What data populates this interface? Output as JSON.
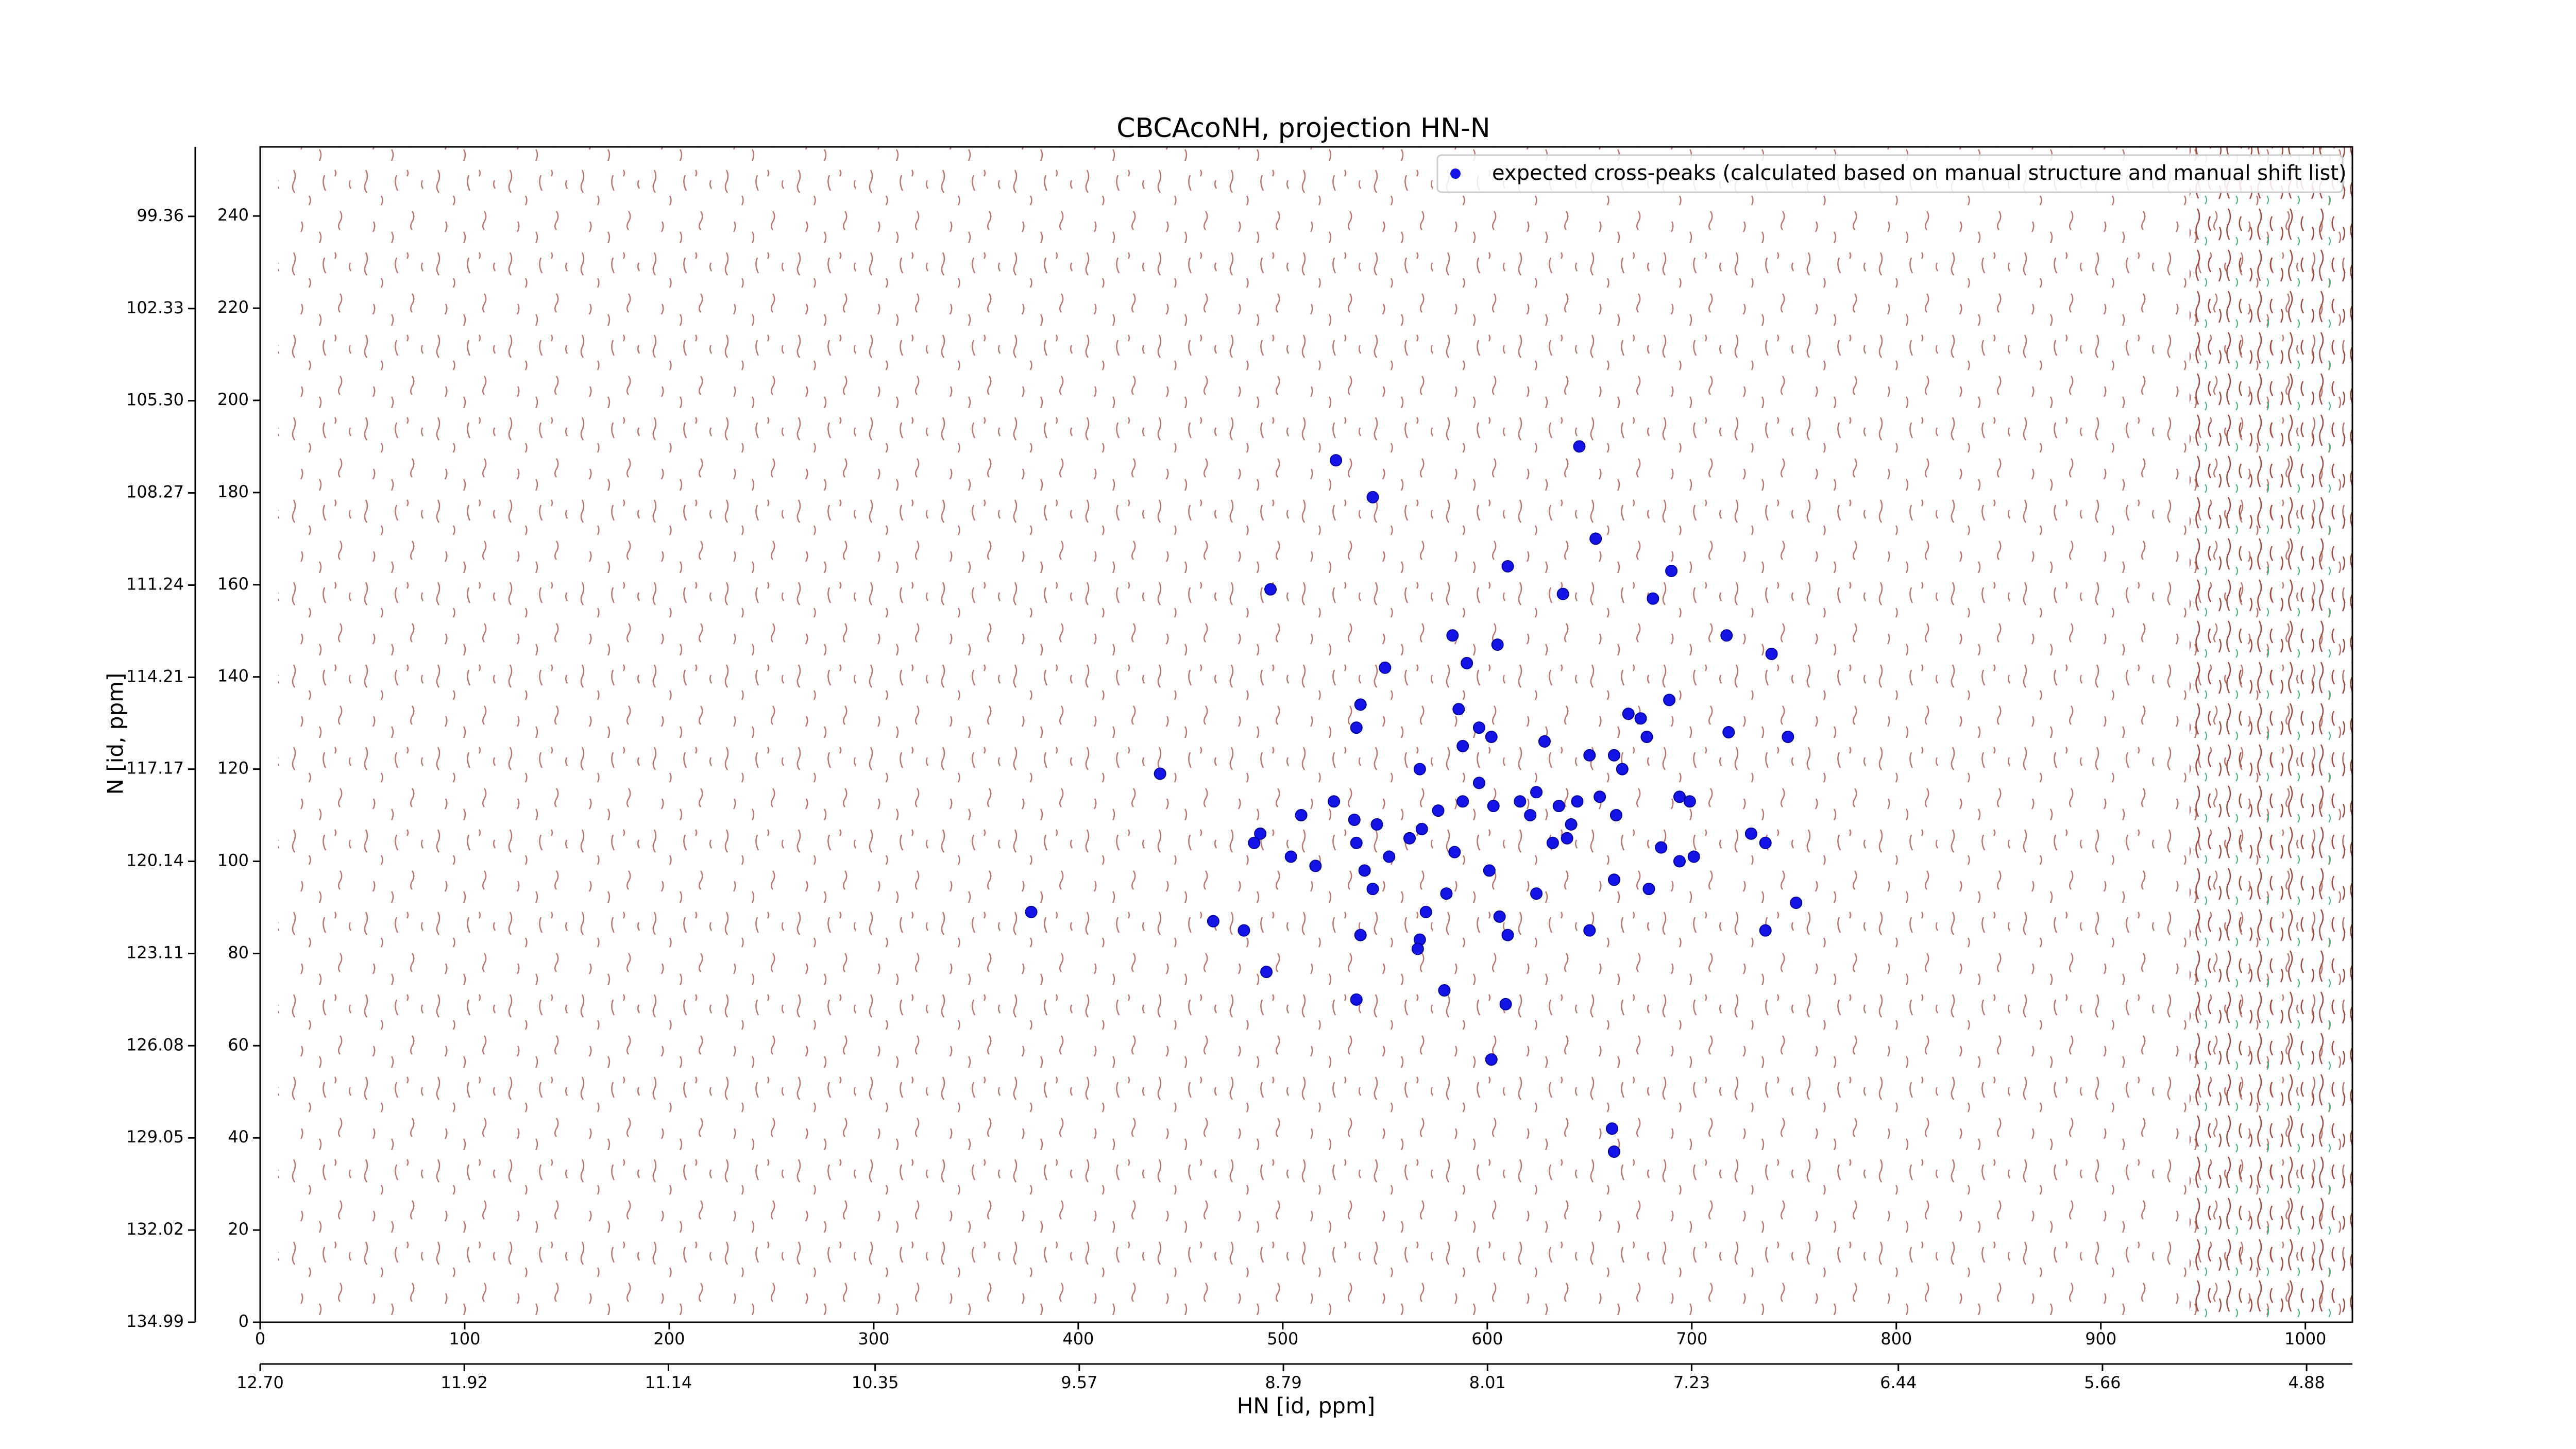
{
  "chart_data": {
    "type": "scatter",
    "title": "CBCAcoNH, projection HN-N",
    "xlabel": "HN [id, ppm]",
    "ylabel": "N [id, ppm]",
    "xlim": [
      0,
      1023
    ],
    "xticks": [
      0,
      100,
      200,
      300,
      400,
      500,
      600,
      700,
      800,
      900,
      1000
    ],
    "ylim": [
      0,
      255
    ],
    "yticks": [
      0,
      20,
      40,
      60,
      80,
      100,
      120,
      140,
      160,
      180,
      200,
      220,
      240
    ],
    "x2lim": [
      12.7,
      4.705
    ],
    "x2ticks": [
      {
        "value": 12.7,
        "label": "12.70"
      },
      11.92,
      11.14,
      10.35,
      9.57,
      8.79,
      8.01,
      7.23,
      6.44,
      5.66,
      4.88
    ],
    "y2lim": [
      134.99,
      97.12
    ],
    "y2ticks": [
      99.36,
      102.33,
      {
        "value": 105.3,
        "label": "105.30"
      },
      108.27,
      111.24,
      114.21,
      117.17,
      120.14,
      123.11,
      126.08,
      129.05,
      132.02,
      134.99
    ],
    "legend": "upper right",
    "series": [
      {
        "name": "expected cross-peaks (calculated based on manual structure and manual shift list)",
        "color": "#1414e6",
        "x": [
          526,
          544,
          645,
          653,
          610,
          690,
          494,
          637,
          681,
          583,
          605,
          717,
          739,
          550,
          590,
          538,
          586,
          689,
          536,
          596,
          669,
          675,
          718,
          747,
          588,
          602,
          628,
          678,
          440,
          567,
          650,
          662,
          666,
          596,
          624,
          525,
          576,
          588,
          603,
          616,
          621,
          635,
          644,
          655,
          663,
          694,
          699,
          509,
          535,
          546,
          489,
          568,
          641,
          639,
          729,
          562,
          632,
          536,
          486,
          584,
          552,
          504,
          685,
          736,
          701,
          694,
          516,
          540,
          601,
          662,
          544,
          580,
          624,
          679,
          377,
          570,
          751,
          606,
          466,
          481,
          650,
          736,
          538,
          610,
          567,
          566,
          492,
          579,
          536,
          609,
          602,
          661,
          662
        ],
        "values": [
          187,
          179,
          190,
          170,
          164,
          163,
          159,
          158,
          157,
          149,
          147,
          149,
          145,
          142,
          143,
          134,
          133,
          135,
          129,
          129,
          132,
          131,
          128,
          127,
          125,
          127,
          126,
          127,
          119,
          120,
          123,
          123,
          120,
          117,
          115,
          113,
          111,
          113,
          112,
          113,
          110,
          112,
          113,
          114,
          110,
          114,
          113,
          110,
          109,
          108,
          106,
          107,
          108,
          105,
          106,
          105,
          104,
          104,
          104,
          102,
          101,
          101,
          103,
          104,
          101,
          100,
          99,
          98,
          98,
          96,
          94,
          93,
          93,
          94,
          89,
          89,
          91,
          88,
          87,
          85,
          85,
          85,
          84,
          84,
          83,
          81,
          76,
          72,
          70,
          69,
          57,
          42,
          37
        ]
      }
    ]
  }
}
